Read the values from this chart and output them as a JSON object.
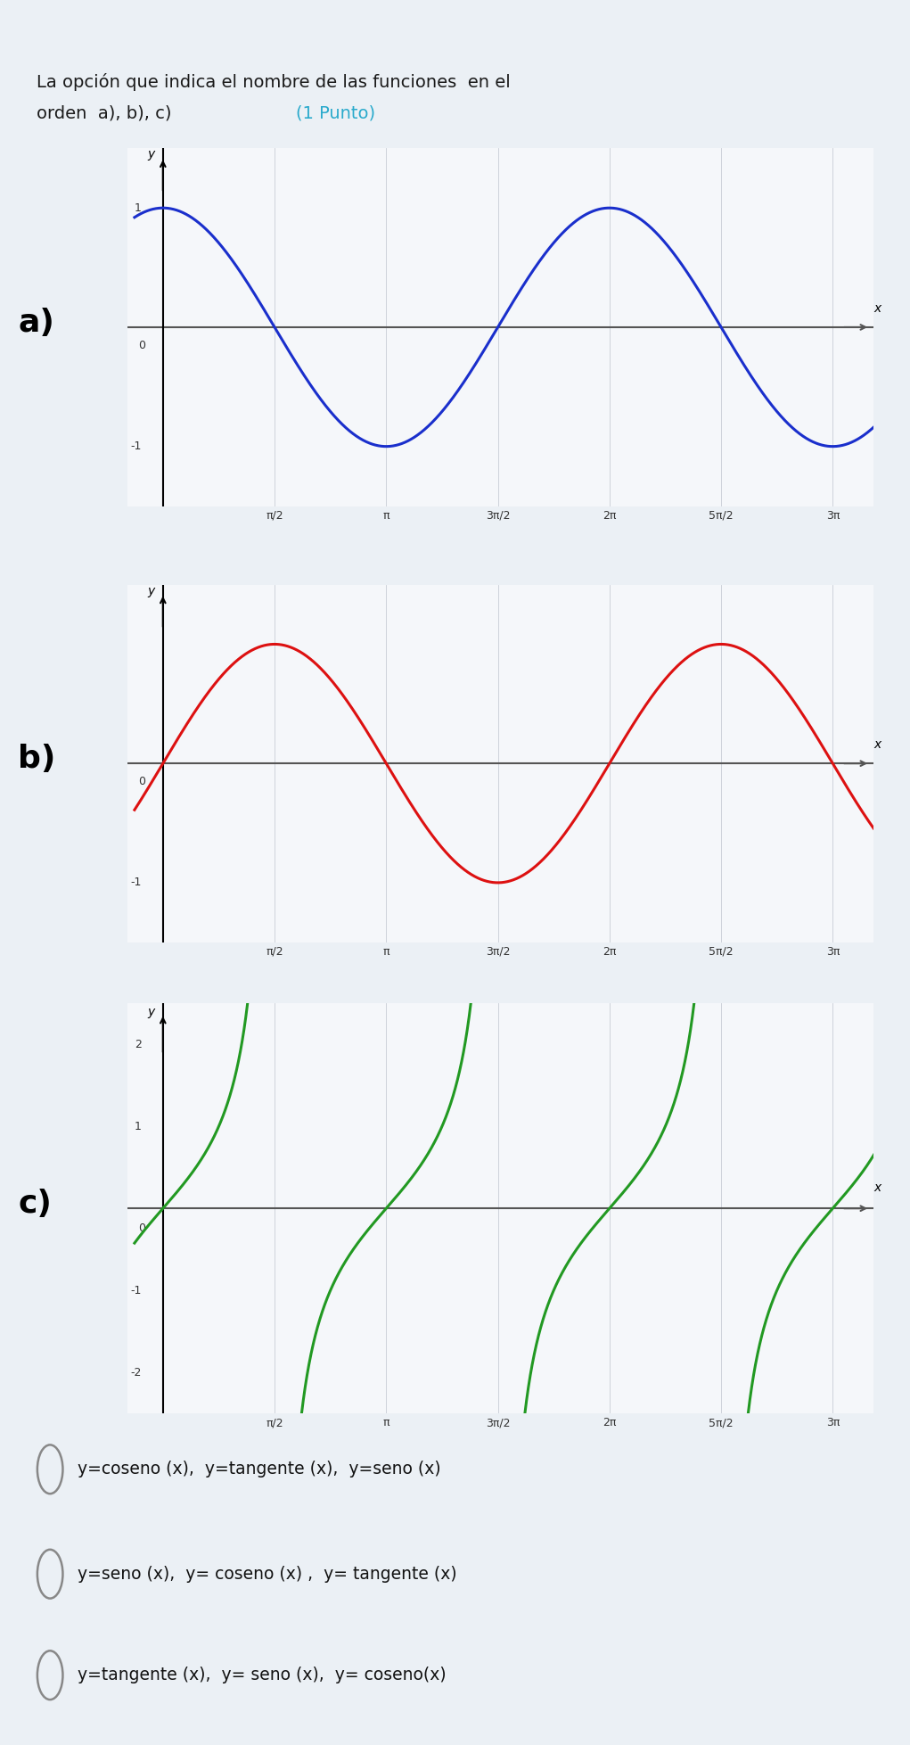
{
  "title_line1": "La opción que indica el nombre de las funciones  en el",
  "title_line2": "orden  a), b), c) ",
  "title_highlight": "(1 Punto)",
  "title_color": "#1a1a1a",
  "highlight_color": "#2AAACC",
  "bg_color": "#EBF0F5",
  "plot_bg_color": "#F5F7FA",
  "graph_a_color": "#1A2FCC",
  "graph_b_color": "#DD1111",
  "graph_c_color": "#229922",
  "label_a": "a)",
  "label_b": "b)",
  "label_c": "c)",
  "options": [
    "y=coseno (x),  y=tangente (x),  y=seno (x)",
    "y=seno (x),  y= coseno (x) ,  y= tangente (x)",
    "y=tangente (x),  y= seno (x),  y= coseno(x)"
  ],
  "x_tick_labels": [
    "0",
    "π/2",
    "π",
    "3π/2",
    "2π",
    "5π/2",
    "3π"
  ],
  "x_tick_vals": [
    0,
    1.5707963,
    3.1415927,
    4.712389,
    6.2831853,
    7.8539816,
    9.424778
  ],
  "x_min": -0.5,
  "x_max": 10.0,
  "ylim_ab": [
    -1.5,
    1.5
  ],
  "ylim_c": [
    -2.5,
    2.5
  ],
  "pi": 3.14159265358979
}
